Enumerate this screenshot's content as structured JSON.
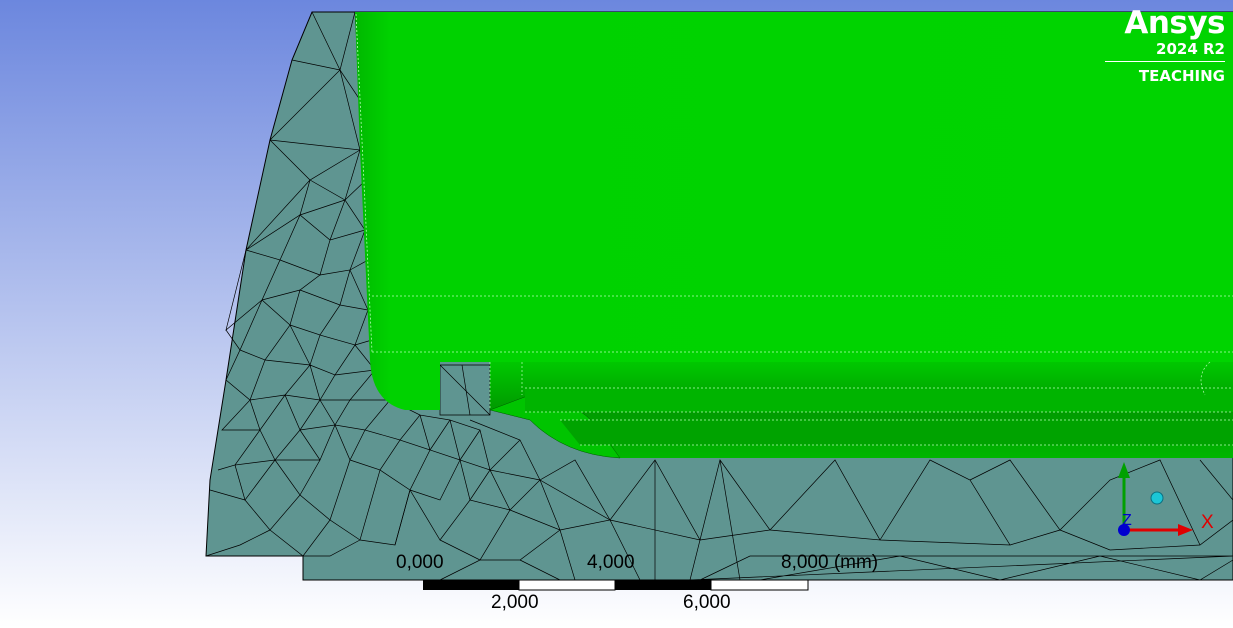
{
  "logo": {
    "name": "Ansys",
    "version": "2024 R2",
    "edition": "TEACHING"
  },
  "scale_bar": {
    "top_labels": [
      "0,000",
      "4,000",
      "8,000 (mm)"
    ],
    "bottom_labels": [
      "2,000",
      "6,000"
    ]
  },
  "triad": {
    "x_label": "X",
    "z_label": "Z"
  },
  "colors": {
    "background_top": "#6c87de",
    "background_bottom": "#ffffff",
    "mesh_fill": "#5f9591",
    "selected_face": "#00d000",
    "axis_x": "#e00000",
    "axis_y": "#00a000",
    "axis_z": "#0000d0"
  }
}
